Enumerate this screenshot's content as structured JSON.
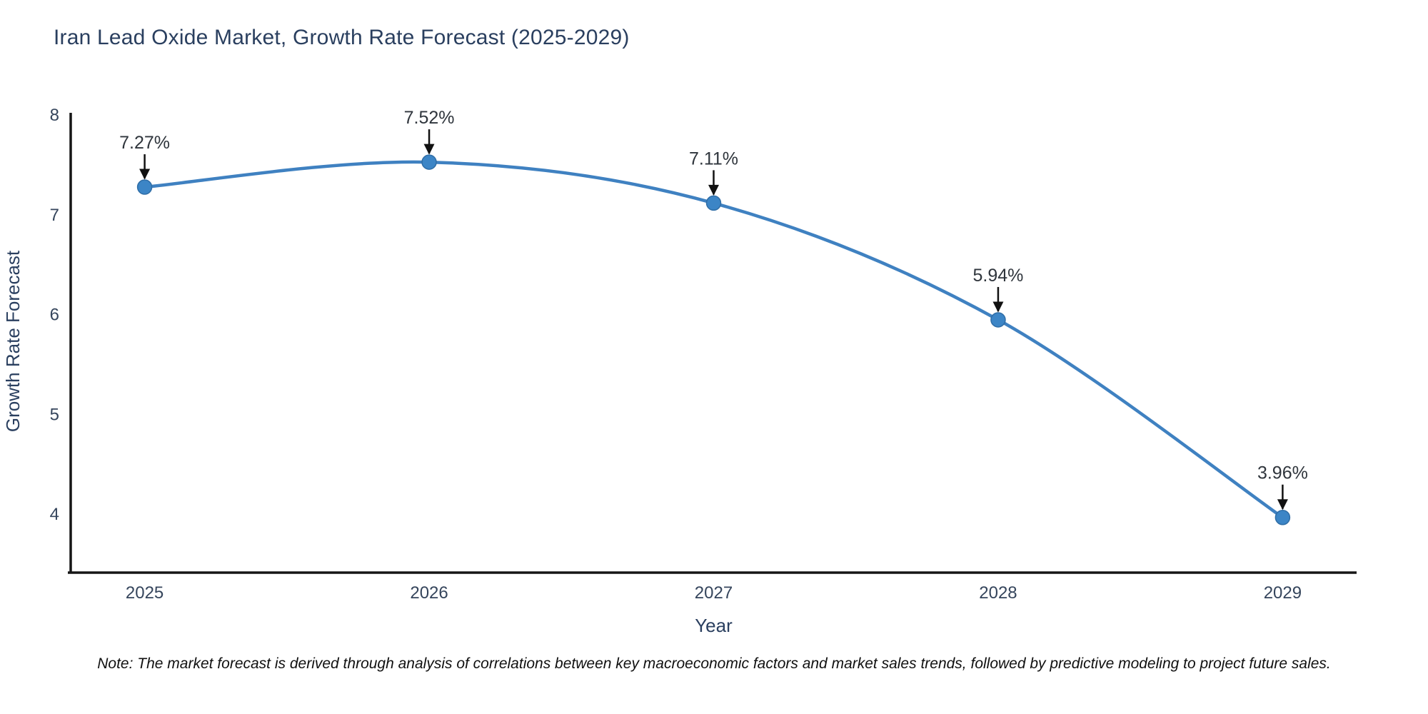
{
  "page": {
    "background": "#ffffff"
  },
  "header": {
    "title": "Iran Lead Oxide Market, Growth Rate Forecast (2025-2029)"
  },
  "footnote": {
    "text": "Note: The market forecast is derived through analysis of correlations between key macroeconomic factors and market sales trends, followed by predictive modeling to project future sales."
  },
  "chart_data": {
    "type": "line",
    "title": "Iran Lead Oxide Market, Growth Rate Forecast (2025-2029)",
    "x": [
      2025,
      2026,
      2027,
      2028,
      2029
    ],
    "x_tick_labels": [
      "2025",
      "2026",
      "2027",
      "2028",
      "2029"
    ],
    "series": [
      {
        "name": "Growth Rate Forecast",
        "values": [
          7.27,
          7.52,
          7.11,
          5.94,
          3.96
        ]
      }
    ],
    "point_labels": [
      "7.27%",
      "7.52%",
      "7.11%",
      "5.94%",
      "3.96%"
    ],
    "xlabel": "Year",
    "ylabel": "Growth Rate Forecast",
    "y_ticks": [
      8,
      7,
      6,
      5,
      4
    ],
    "ylim": [
      3.4,
      8.05
    ],
    "xlim": [
      2024.74,
      2029.26
    ],
    "grid": false,
    "legend_position": "none",
    "annotation_style": "arrow-down",
    "line_shape": "spline",
    "colors": {
      "line": "#3f81c1",
      "marker": "#3c85c6",
      "marker_edge": "#2f6da6",
      "axis": "#161616",
      "text": "#2a3f5f",
      "tick_text": "#35455c",
      "annotation_text": "#2f353c",
      "arrow": "#111111"
    }
  }
}
